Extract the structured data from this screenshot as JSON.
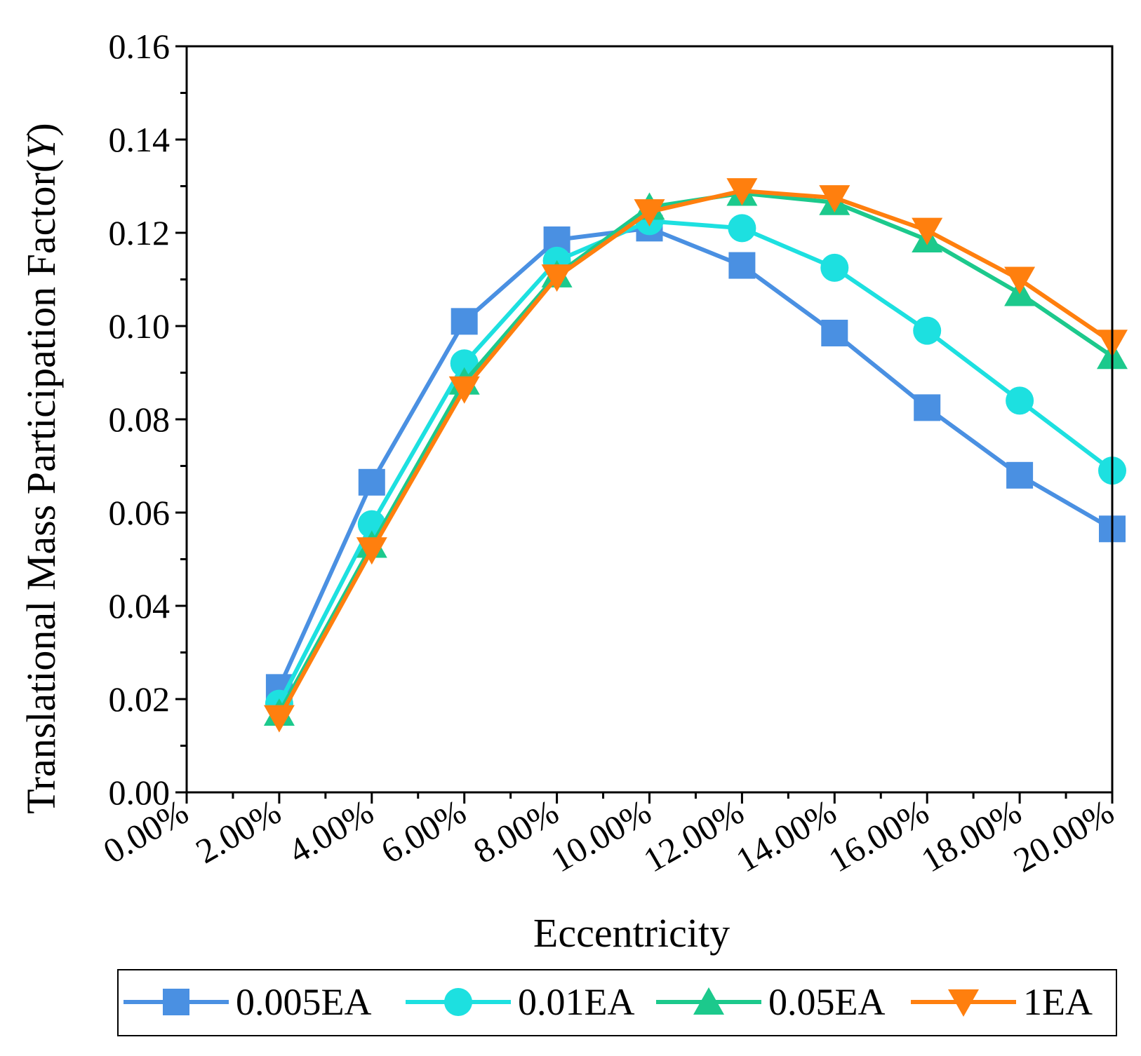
{
  "chart_data": {
    "type": "line",
    "title": "",
    "xlabel": "Eccentricity",
    "ylabel_main": "Translational Mass Participation Factor(",
    "ylabel_var": "Y",
    "ylabel_close": ")",
    "x": [
      2,
      4,
      6,
      8,
      10,
      12,
      14,
      16,
      18,
      20
    ],
    "xlim": [
      0,
      20
    ],
    "ylim": [
      0,
      0.16
    ],
    "x_tick_labels": [
      "0.00%",
      "2.00%",
      "4.00%",
      "6.00%",
      "8.00%",
      "10.00%",
      "12.00%",
      "14.00%",
      "16.00%",
      "18.00%",
      "20.00%"
    ],
    "y_tick_labels": [
      "0.00",
      "0.02",
      "0.04",
      "0.06",
      "0.08",
      "0.10",
      "0.12",
      "0.14",
      "0.16"
    ],
    "series": [
      {
        "name": "0.005EA",
        "color": "#4a90e2",
        "marker": "square",
        "values": [
          0.0225,
          0.0665,
          0.101,
          0.1185,
          0.121,
          0.113,
          0.0985,
          0.0825,
          0.068,
          0.0565
        ]
      },
      {
        "name": "0.01EA",
        "color": "#1de0e0",
        "marker": "circle",
        "values": [
          0.019,
          0.0575,
          0.092,
          0.114,
          0.1225,
          0.121,
          0.1125,
          0.099,
          0.084,
          0.069
        ]
      },
      {
        "name": "0.05EA",
        "color": "#1cc98c",
        "marker": "triangle-up",
        "values": [
          0.017,
          0.053,
          0.088,
          0.111,
          0.1255,
          0.1285,
          0.1265,
          0.1185,
          0.107,
          0.0935
        ]
      },
      {
        "name": "1EA",
        "color": "#ff7f0e",
        "marker": "triangle-down",
        "values": [
          0.016,
          0.052,
          0.0865,
          0.1105,
          0.1245,
          0.129,
          0.1275,
          0.1205,
          0.11,
          0.0965
        ]
      }
    ],
    "grid": false,
    "legend_position": "bottom"
  }
}
